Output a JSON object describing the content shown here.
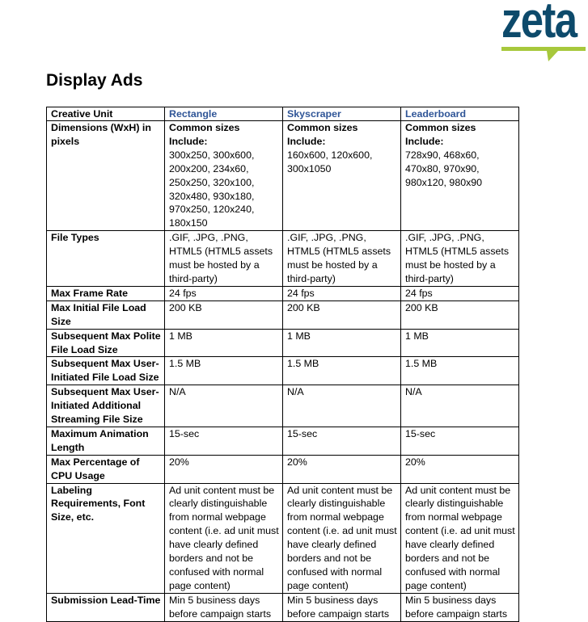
{
  "logo": {
    "text": "zeta",
    "colors": {
      "text": "#0d4a6b",
      "underline": "#a7c83c"
    }
  },
  "page_title": "Display Ads",
  "table": {
    "headers": [
      "Creative Unit",
      "Rectangle",
      "Skyscraper",
      "Leaderboard"
    ],
    "dimensions": {
      "label": "Dimensions (WxH) in pixels",
      "prefix": "Common sizes Include:",
      "values": [
        "300x250, 300x600, 200x200, 234x60, 250x250, 320x100, 320x480, 930x180, 970x250, 120x240, 180x150",
        "160x600, 120x600, 300x1050",
        "728x90, 468x60, 470x80, 970x90, 980x120, 980x90"
      ]
    },
    "rows": [
      {
        "label": "File Types",
        "values": [
          ".GIF, .JPG, .PNG, HTML5 (HTML5 assets must be hosted by a third-party)",
          ".GIF, .JPG, .PNG, HTML5 (HTML5 assets must be hosted by a third-party)",
          ".GIF, .JPG, .PNG, HTML5 (HTML5 assets must be hosted by a third-party)"
        ]
      },
      {
        "label": "Max Frame Rate",
        "values": [
          "24 fps",
          "24 fps",
          "24 fps"
        ]
      },
      {
        "label": "Max Initial File Load Size",
        "values": [
          "200 KB",
          "200 KB",
          "200 KB"
        ]
      },
      {
        "label": "Subsequent Max Polite File Load Size",
        "values": [
          "1 MB",
          "1 MB",
          "1 MB"
        ]
      },
      {
        "label": "Subsequent Max User-Initiated File Load Size",
        "values": [
          "1.5 MB",
          "1.5 MB",
          "1.5 MB"
        ]
      },
      {
        "label": "Subsequent Max User-Initiated Additional Streaming File Size",
        "values": [
          "N/A",
          "N/A",
          "N/A"
        ]
      },
      {
        "label": "Maximum Animation Length",
        "values": [
          "15-sec",
          "15-sec",
          "15-sec"
        ]
      },
      {
        "label": "Max Percentage of CPU Usage",
        "values": [
          "20%",
          "20%",
          "20%"
        ]
      },
      {
        "label": "Labeling Requirements, Font Size, etc.",
        "values": [
          "Ad unit content must be clearly distinguishable from normal webpage content (i.e. ad unit must have clearly defined borders and not be confused with normal page content)",
          "Ad unit content must be clearly distinguishable from normal webpage content (i.e. ad unit must have clearly defined borders and not be confused with normal page content)",
          "Ad unit content must be clearly distinguishable from normal webpage content (i.e. ad unit must have clearly defined borders and not be confused with normal page content)"
        ]
      },
      {
        "label": "Submission Lead-Time",
        "values": [
          "Min 5 business days before campaign starts",
          "Min 5 business days before campaign starts",
          "Min 5  business days before campaign starts"
        ]
      }
    ]
  }
}
